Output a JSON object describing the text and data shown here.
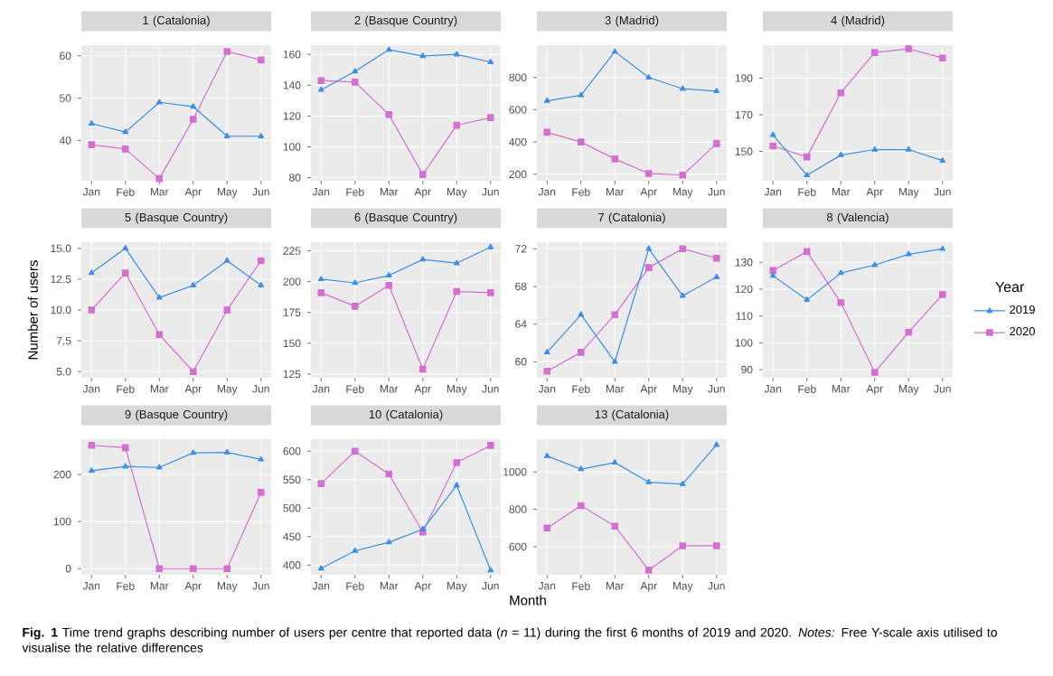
{
  "chart_data": [
    {
      "type": "line",
      "title": "1 (Catalonia)",
      "categories": [
        "Jan",
        "Feb",
        "Mar",
        "Apr",
        "May",
        "Jun"
      ],
      "ylim": [
        30.5,
        62.5
      ],
      "yticks": [
        40,
        50,
        60
      ],
      "grid": true,
      "series": [
        {
          "color": "#3b8fe5",
          "marker": "triangle",
          "values": [
            44,
            42,
            49,
            48,
            41,
            41
          ]
        },
        {
          "color": "#d46fd0",
          "marker": "square",
          "values": [
            39,
            38,
            31,
            45,
            61,
            59
          ]
        }
      ]
    },
    {
      "type": "line",
      "title": "2 (Basque Country)",
      "categories": [
        "Jan",
        "Feb",
        "Mar",
        "Apr",
        "May",
        "Jun"
      ],
      "ylim": [
        78,
        166
      ],
      "yticks": [
        80,
        100,
        120,
        140,
        160
      ],
      "grid": true,
      "series": [
        {
          "color": "#3b8fe5",
          "marker": "triangle",
          "values": [
            137,
            149,
            163,
            159,
            160,
            155
          ]
        },
        {
          "color": "#d46fd0",
          "marker": "square",
          "values": [
            143,
            142,
            121,
            82,
            114,
            119
          ]
        }
      ]
    },
    {
      "type": "line",
      "title": "3 (Madrid)",
      "categories": [
        "Jan",
        "Feb",
        "Mar",
        "Apr",
        "May",
        "Jun"
      ],
      "ylim": [
        160,
        1000
      ],
      "yticks": [
        200,
        400,
        600,
        800
      ],
      "grid": true,
      "series": [
        {
          "color": "#3b8fe5",
          "marker": "triangle",
          "values": [
            655,
            690,
            960,
            800,
            730,
            715
          ]
        },
        {
          "color": "#d46fd0",
          "marker": "square",
          "values": [
            460,
            400,
            295,
            205,
            195,
            390
          ]
        }
      ]
    },
    {
      "type": "line",
      "title": "4 (Madrid)",
      "categories": [
        "Jan",
        "Feb",
        "Mar",
        "Apr",
        "May",
        "Jun"
      ],
      "ylim": [
        134,
        208
      ],
      "yticks": [
        150,
        170,
        190
      ],
      "grid": true,
      "series": [
        {
          "color": "#3b8fe5",
          "marker": "triangle",
          "values": [
            159,
            137,
            148,
            151,
            151,
            145
          ]
        },
        {
          "color": "#d46fd0",
          "marker": "square",
          "values": [
            153,
            147,
            182,
            204,
            206,
            201
          ]
        }
      ]
    },
    {
      "type": "line",
      "title": "5 (Basque Country)",
      "ylabel": "Number of users",
      "categories": [
        "Jan",
        "Feb",
        "Mar",
        "Apr",
        "May",
        "Jun"
      ],
      "ylim": [
        4.5,
        15.5
      ],
      "yticks": [
        {
          "value": 5,
          "label": "5.0"
        },
        {
          "value": 7.5,
          "label": "7.5"
        },
        {
          "value": 10,
          "label": "10.0"
        },
        {
          "value": 12.5,
          "label": "12.5"
        },
        {
          "value": 15,
          "label": "15.0"
        }
      ],
      "grid": true,
      "series": [
        {
          "color": "#3b8fe5",
          "marker": "triangle",
          "values": [
            13,
            15,
            11,
            12,
            14,
            12
          ]
        },
        {
          "color": "#d46fd0",
          "marker": "square",
          "values": [
            10,
            13,
            8,
            5,
            10,
            14
          ]
        }
      ]
    },
    {
      "type": "line",
      "title": "6 (Basque Country)",
      "categories": [
        "Jan",
        "Feb",
        "Mar",
        "Apr",
        "May",
        "Jun"
      ],
      "ylim": [
        122,
        232
      ],
      "yticks": [
        125,
        150,
        175,
        200,
        225
      ],
      "grid": true,
      "series": [
        {
          "color": "#3b8fe5",
          "marker": "triangle",
          "values": [
            202,
            199,
            205,
            218,
            215,
            228
          ]
        },
        {
          "color": "#d46fd0",
          "marker": "square",
          "values": [
            191,
            180,
            197,
            129,
            192,
            191
          ]
        }
      ]
    },
    {
      "type": "line",
      "title": "7 (Catalonia)",
      "categories": [
        "Jan",
        "Feb",
        "Mar",
        "Apr",
        "May",
        "Jun"
      ],
      "ylim": [
        58.3,
        72.7
      ],
      "yticks": [
        60,
        64,
        68,
        72
      ],
      "grid": true,
      "series": [
        {
          "color": "#3b8fe5",
          "marker": "triangle",
          "values": [
            61,
            65,
            60,
            72,
            67,
            69
          ]
        },
        {
          "color": "#d46fd0",
          "marker": "square",
          "values": [
            59,
            61,
            65,
            70,
            72,
            71
          ]
        }
      ]
    },
    {
      "type": "line",
      "title": "8 (Valencia)",
      "categories": [
        "Jan",
        "Feb",
        "Mar",
        "Apr",
        "May",
        "Jun"
      ],
      "ylim": [
        87,
        137.5
      ],
      "yticks": [
        90,
        100,
        110,
        120,
        130
      ],
      "grid": true,
      "legend": "right",
      "legend_title": "Year",
      "series": [
        {
          "name": "2019",
          "color": "#3b8fe5",
          "marker": "triangle",
          "values": [
            125,
            116,
            126,
            129,
            133,
            135
          ]
        },
        {
          "name": "2020",
          "color": "#d46fd0",
          "marker": "square",
          "values": [
            127,
            134,
            115,
            89,
            104,
            118
          ]
        }
      ]
    },
    {
      "type": "line",
      "title": "9 (Basque Country)",
      "categories": [
        "Jan",
        "Feb",
        "Mar",
        "Apr",
        "May",
        "Jun"
      ],
      "ylim": [
        -13,
        275
      ],
      "yticks": [
        0,
        100,
        200
      ],
      "grid": true,
      "series": [
        {
          "color": "#3b8fe5",
          "marker": "triangle",
          "values": [
            208,
            217,
            215,
            246,
            247,
            232
          ]
        },
        {
          "color": "#d46fd0",
          "marker": "square",
          "values": [
            262,
            257,
            0,
            0,
            0,
            162
          ]
        }
      ]
    },
    {
      "type": "line",
      "title": "10 (Catalonia)",
      "xlabel": "Month",
      "categories": [
        "Jan",
        "Feb",
        "Mar",
        "Apr",
        "May",
        "Jun"
      ],
      "ylim": [
        383,
        621
      ],
      "yticks": [
        400,
        450,
        500,
        550,
        600
      ],
      "grid": true,
      "series": [
        {
          "color": "#3b8fe5",
          "marker": "triangle",
          "values": [
            394,
            425,
            440,
            463,
            540,
            391
          ]
        },
        {
          "color": "#d46fd0",
          "marker": "square",
          "values": [
            543,
            600,
            560,
            458,
            580,
            610
          ]
        }
      ]
    },
    {
      "type": "line",
      "title": "13 (Catalonia)",
      "categories": [
        "Jan",
        "Feb",
        "Mar",
        "Apr",
        "May",
        "Jun"
      ],
      "ylim": [
        450,
        1175
      ],
      "yticks": [
        600,
        800,
        1000
      ],
      "grid": true,
      "annotations": [
        "**Fig. 1** Time trend graphs describing number of users per centre that reported data (*n* = 11) during the first 6 months of 2019 and 2020. *Notes:* Free Y-scale axis utilised to visualise the relative differences"
      ],
      "series": [
        {
          "color": "#3b8fe5",
          "marker": "triangle",
          "values": [
            1085,
            1015,
            1050,
            945,
            935,
            1145
          ]
        },
        {
          "color": "#d46fd0",
          "marker": "square",
          "values": [
            700,
            820,
            710,
            475,
            605,
            605
          ]
        }
      ]
    }
  ]
}
